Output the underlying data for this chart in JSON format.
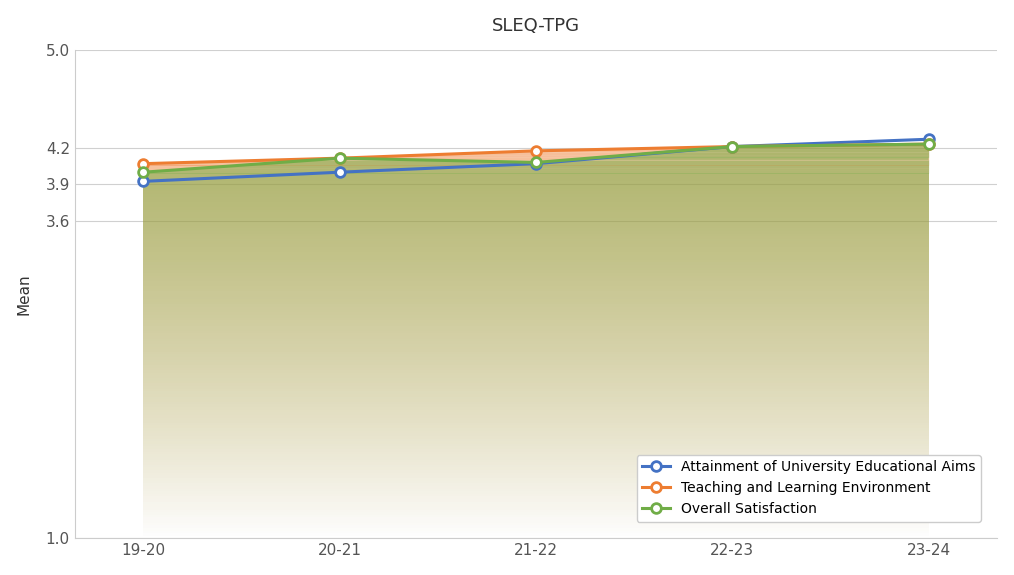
{
  "title": "SLEQ-TPG",
  "ylabel": "Mean",
  "x_labels": [
    "19-20",
    "20-21",
    "21-22",
    "22-23",
    "23-24"
  ],
  "ylim": [
    1.0,
    5.0
  ],
  "yticks": [
    1.0,
    3.6,
    3.9,
    4.2,
    5.0
  ],
  "series": {
    "attainment": {
      "label": "Attainment of University Educational Aims",
      "color": "#4472C4",
      "values": [
        3.925,
        4.0,
        4.07,
        4.21,
        4.27
      ]
    },
    "teaching": {
      "label": "Teaching and Learning Environment",
      "color": "#ED7D31",
      "values": [
        4.07,
        4.115,
        4.175,
        4.21,
        4.23
      ]
    },
    "overall": {
      "label": "Overall Satisfaction",
      "color": "#70AD47",
      "values": [
        4.0,
        4.115,
        4.08,
        4.21,
        4.23
      ]
    }
  },
  "fill_orange_alpha": 0.18,
  "fill_green_alpha": 0.22,
  "background_color": "#ffffff",
  "title_fontsize": 13,
  "axis_fontsize": 11,
  "legend_fontsize": 10
}
